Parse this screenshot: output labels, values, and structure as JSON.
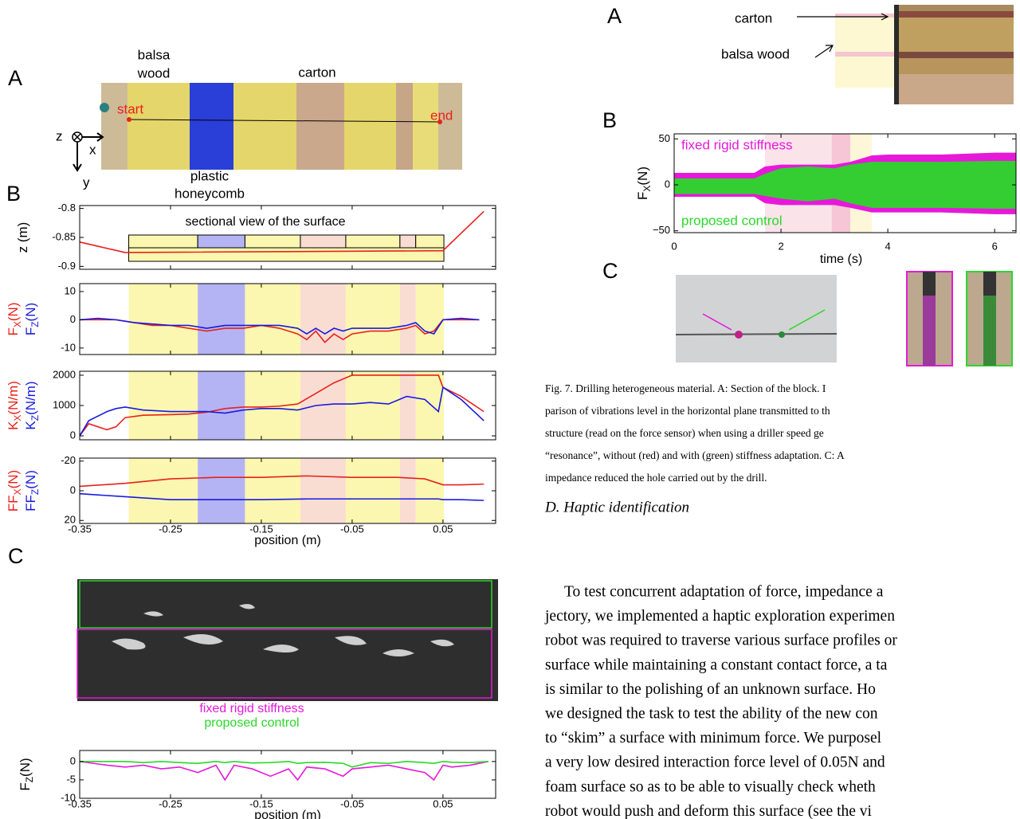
{
  "left_figure": {
    "panel_a": {
      "label": "A",
      "balsa_wood": [
        "balsa",
        "wood"
      ],
      "carton": "carton",
      "plastic_honeycomb": [
        "plastic",
        "honeycomb"
      ],
      "start": "start",
      "end": "end",
      "axes": {
        "z": "z",
        "x": "x",
        "y": "y"
      }
    },
    "panel_b_label": "B",
    "panel_c_label": "C"
  },
  "right_figure": {
    "panel_a": {
      "label": "A",
      "carton": "carton",
      "balsa_wood": "balsa wood"
    },
    "panel_b_label": "B",
    "panel_c_label": "C"
  },
  "chart_data": [
    {
      "type": "line",
      "annotation": "sectional view of the surface",
      "ylabel": [
        {
          "text": [
            "z (m)"
          ],
          "color": "#000000"
        }
      ],
      "xlim": [
        -0.35,
        0.108
      ],
      "ylim": [
        -0.905,
        -0.795
      ],
      "xticks": [
        -0.35,
        -0.25,
        -0.15,
        -0.05,
        0.05
      ],
      "xtick_labels": false,
      "yticks": [
        -0.8,
        -0.85,
        -0.9
      ],
      "regions": [
        {
          "x": [
            -0.296,
            -0.22
          ],
          "color": "#fbf7b0"
        },
        {
          "x": [
            -0.22,
            -0.168
          ],
          "color": "#b4b4f4"
        },
        {
          "x": [
            -0.168,
            -0.107
          ],
          "color": "#fbf7b0"
        },
        {
          "x": [
            -0.107,
            -0.057
          ],
          "color": "#f9ddd2"
        },
        {
          "x": [
            -0.057,
            0.0026
          ],
          "color": "#fbf7b0"
        },
        {
          "x": [
            0.0026,
            0.02
          ],
          "color": "#f9ddd2"
        },
        {
          "x": [
            0.02,
            0.051
          ],
          "color": "#fbf7b0"
        }
      ],
      "x": [
        -0.35,
        -0.3,
        0.05,
        0.095
      ],
      "series": [
        {
          "color": "#e8211c",
          "values": [
            -0.858,
            -0.876,
            -0.873,
            -0.805
          ]
        }
      ]
    },
    {
      "type": "line",
      "ylabel": [
        {
          "text": [
            "F",
            "X",
            "(N)"
          ],
          "color": "#e8211c"
        },
        {
          "text": [
            "F",
            "Z",
            "(N)"
          ],
          "color": "#1a1adf"
        }
      ],
      "xlim": [
        -0.35,
        0.108
      ],
      "ylim": [
        -12.3,
        12.8
      ],
      "xticks": [
        -0.35,
        -0.25,
        -0.15,
        -0.05,
        0.05
      ],
      "xtick_labels": false,
      "yticks": [
        10,
        0,
        -10
      ],
      "x": [
        -0.35,
        -0.33,
        -0.31,
        -0.29,
        -0.27,
        -0.25,
        -0.23,
        -0.21,
        -0.19,
        -0.17,
        -0.15,
        -0.13,
        -0.11,
        -0.1,
        -0.09,
        -0.08,
        -0.07,
        -0.06,
        -0.05,
        -0.03,
        -0.01,
        0.01,
        0.02,
        0.03,
        0.04,
        0.05,
        0.07,
        0.09
      ],
      "series": [
        {
          "color": "#e8211c",
          "values": [
            0,
            0,
            0,
            -1,
            -2,
            -2,
            -3,
            -4,
            -3,
            -3,
            -2,
            -3,
            -5,
            -7,
            -4,
            -8,
            -5,
            -7,
            -5,
            -4,
            -4,
            -3,
            -2,
            -5,
            -4,
            0,
            0,
            0
          ]
        },
        {
          "color": "#1a1adf",
          "values": [
            0,
            0.5,
            0,
            -1,
            -1.5,
            -2,
            -2,
            -3,
            -2,
            -2,
            -2,
            -2,
            -3,
            -5,
            -3,
            -5,
            -3,
            -4,
            -3,
            -3,
            -3,
            -2,
            -1,
            -4,
            -5,
            0,
            0.5,
            0
          ]
        }
      ]
    },
    {
      "type": "line",
      "ylabel": [
        {
          "text": [
            "K",
            "X",
            "(N/m)"
          ],
          "color": "#e8211c"
        },
        {
          "text": [
            "K",
            "Z",
            "(N/m)"
          ],
          "color": "#1a1adf"
        }
      ],
      "xlim": [
        -0.35,
        0.108
      ],
      "ylim": [
        -130,
        2130
      ],
      "xticks": [
        -0.35,
        -0.25,
        -0.15,
        -0.05,
        0.05
      ],
      "xtick_labels": false,
      "yticks": [
        2000,
        1000,
        0
      ],
      "x": [
        -0.35,
        -0.34,
        -0.32,
        -0.31,
        -0.3,
        -0.28,
        -0.25,
        -0.23,
        -0.21,
        -0.19,
        -0.17,
        -0.15,
        -0.13,
        -0.11,
        -0.09,
        -0.07,
        -0.05,
        -0.03,
        -0.01,
        0.01,
        0.03,
        0.045,
        0.05,
        0.07,
        0.095
      ],
      "series": [
        {
          "color": "#e8211c",
          "values": [
            0,
            400,
            200,
            300,
            600,
            680,
            700,
            720,
            780,
            900,
            950,
            950,
            980,
            1050,
            1400,
            1750,
            2000,
            2000,
            2000,
            2000,
            2000,
            2000,
            1600,
            1300,
            800
          ]
        },
        {
          "color": "#1a1adf",
          "values": [
            0,
            500,
            800,
            900,
            950,
            850,
            800,
            800,
            800,
            750,
            850,
            900,
            900,
            850,
            1000,
            1050,
            1050,
            1100,
            1050,
            1300,
            1200,
            800,
            1600,
            1200,
            500
          ]
        }
      ]
    },
    {
      "type": "line",
      "ylabel": [
        {
          "text": [
            "FF",
            "X",
            "(N)"
          ],
          "color": "#e8211c"
        },
        {
          "text": [
            "FF",
            "Z",
            "(N)"
          ],
          "color": "#1a1adf"
        }
      ],
      "xlabel": "position (m)",
      "xlim": [
        -0.35,
        0.108
      ],
      "ylim": [
        -22,
        22
      ],
      "yinvert": true,
      "xticks": [
        -0.35,
        -0.25,
        -0.15,
        -0.05,
        0.05
      ],
      "yticks": [
        -20,
        0,
        20
      ],
      "x": [
        -0.35,
        -0.3,
        -0.25,
        -0.2,
        -0.15,
        -0.1,
        -0.05,
        0,
        0.03,
        0.045,
        0.05,
        0.07,
        0.095
      ],
      "series": [
        {
          "color": "#e8211c",
          "values": [
            -3,
            -5,
            -8,
            -9,
            -9,
            -10,
            -9,
            -9,
            -8,
            -5,
            -4,
            -4,
            -4.5
          ]
        },
        {
          "color": "#1a1adf",
          "values": [
            2,
            4,
            6,
            6,
            6,
            5.5,
            5.5,
            5.5,
            5.5,
            5.5,
            6,
            6,
            6.5
          ]
        }
      ]
    },
    {
      "type": "line",
      "ylabel": [
        {
          "text": [
            "F",
            "Z",
            "(N)"
          ],
          "color": "#000000"
        }
      ],
      "xlabel": "position (m)",
      "legend": "above",
      "xlim": [
        -0.35,
        0.108
      ],
      "ylim": [
        -10,
        3
      ],
      "xticks": [
        -0.35,
        -0.25,
        -0.15,
        -0.05,
        0.05
      ],
      "yticks": [
        0,
        -5,
        -10
      ],
      "x": [
        -0.35,
        -0.32,
        -0.3,
        -0.28,
        -0.26,
        -0.24,
        -0.22,
        -0.2,
        -0.19,
        -0.18,
        -0.16,
        -0.14,
        -0.12,
        -0.11,
        -0.1,
        -0.08,
        -0.06,
        -0.05,
        -0.03,
        -0.01,
        0.01,
        0.03,
        0.04,
        0.05,
        0.06,
        0.08,
        0.1
      ],
      "series": [
        {
          "name": "fixed rigid stiffness",
          "color": "#e619d9",
          "values": [
            0,
            -1,
            -1.5,
            -1,
            -2,
            -1.5,
            -3,
            -1,
            -5,
            -1,
            -2,
            -4,
            -2,
            -5,
            -1.5,
            -2,
            -4,
            -2,
            -1.5,
            -1,
            -2,
            -3,
            -5,
            -1,
            -1.5,
            -1,
            0
          ]
        },
        {
          "name": "proposed control",
          "color": "#2ad82a",
          "values": [
            0,
            0,
            0,
            -0.3,
            0,
            -0.3,
            -0.5,
            0,
            -0.3,
            0,
            -0.4,
            -0.3,
            0,
            -0.5,
            -0.3,
            -0.2,
            -0.5,
            -1.5,
            -0.3,
            -0.5,
            0,
            -0.3,
            -0.5,
            0,
            -0.2,
            -0.3,
            0
          ]
        }
      ]
    },
    {
      "type": "area",
      "ylabel": [
        {
          "text": [
            "F",
            "X",
            "(N)"
          ],
          "color": "#000000"
        }
      ],
      "xlabel": "time (s)",
      "legend": "inside",
      "xlim": [
        0,
        6.4
      ],
      "ylim": [
        -52,
        55.5
      ],
      "xticks": [
        0,
        2,
        4,
        6
      ],
      "yticks": [
        50,
        0,
        {
          "value": -50,
          "label": "−50"
        }
      ],
      "regions": [
        {
          "x": [
            1.7,
            2.95
          ],
          "color": "#fbe3ea"
        },
        {
          "x": [
            2.95,
            3.3
          ],
          "color": "#f6c6d6"
        },
        {
          "x": [
            3.3,
            3.7
          ],
          "color": "#fdf6d8"
        }
      ],
      "x": [
        0,
        1.5,
        1.7,
        2,
        2.5,
        3,
        3.3,
        3.7,
        4,
        5,
        6,
        6.4
      ],
      "series": [
        {
          "name": "fixed rigid stiffness",
          "color": "#e619d9",
          "upper": [
            13,
            13,
            20,
            22,
            22,
            22,
            25,
            32,
            33,
            33,
            35,
            35
          ],
          "lower": [
            -13,
            -13,
            -20,
            -22,
            -22,
            -22,
            -25,
            -30,
            -30,
            -30,
            -32,
            -32
          ]
        },
        {
          "name": "proposed control",
          "color": "#2ad82a",
          "upper": [
            7,
            7,
            12,
            18,
            20,
            18,
            22,
            25,
            25,
            25,
            26,
            26
          ],
          "lower": [
            -10,
            -10,
            -12,
            -15,
            -18,
            -15,
            -20,
            -25,
            -25,
            -25,
            -26,
            -26
          ]
        }
      ]
    }
  ],
  "caption": [
    "Fig. 7.   Drilling heterogeneous material. A: Section of the block. I",
    "parison of vibrations level in the horizontal plane transmitted to th",
    "structure (read on the force sensor) when using a driller speed ge",
    "“resonance”, without (red) and with (green) stiffness adaptation. C: A",
    "impedance reduced the hole carried out by the drill."
  ],
  "section": {
    "heading": "D. Haptic identification",
    "paragraph": [
      "To test concurrent adaptation of force, impedance a",
      "jectory, we implemented a haptic exploration experimen",
      "robot was required to traverse various surface profiles or",
      "surface while maintaining a constant contact force, a ta",
      "is similar to the polishing of an unknown surface. Ho",
      "we designed the task to test the ability of the new con",
      "to “skim” a surface with minimum force. We purposel",
      "a very low desired interaction force level of 0.05N and",
      "foam surface so as to be able to visually check wheth",
      "robot would push and deform this surface (see the vi"
    ]
  }
}
